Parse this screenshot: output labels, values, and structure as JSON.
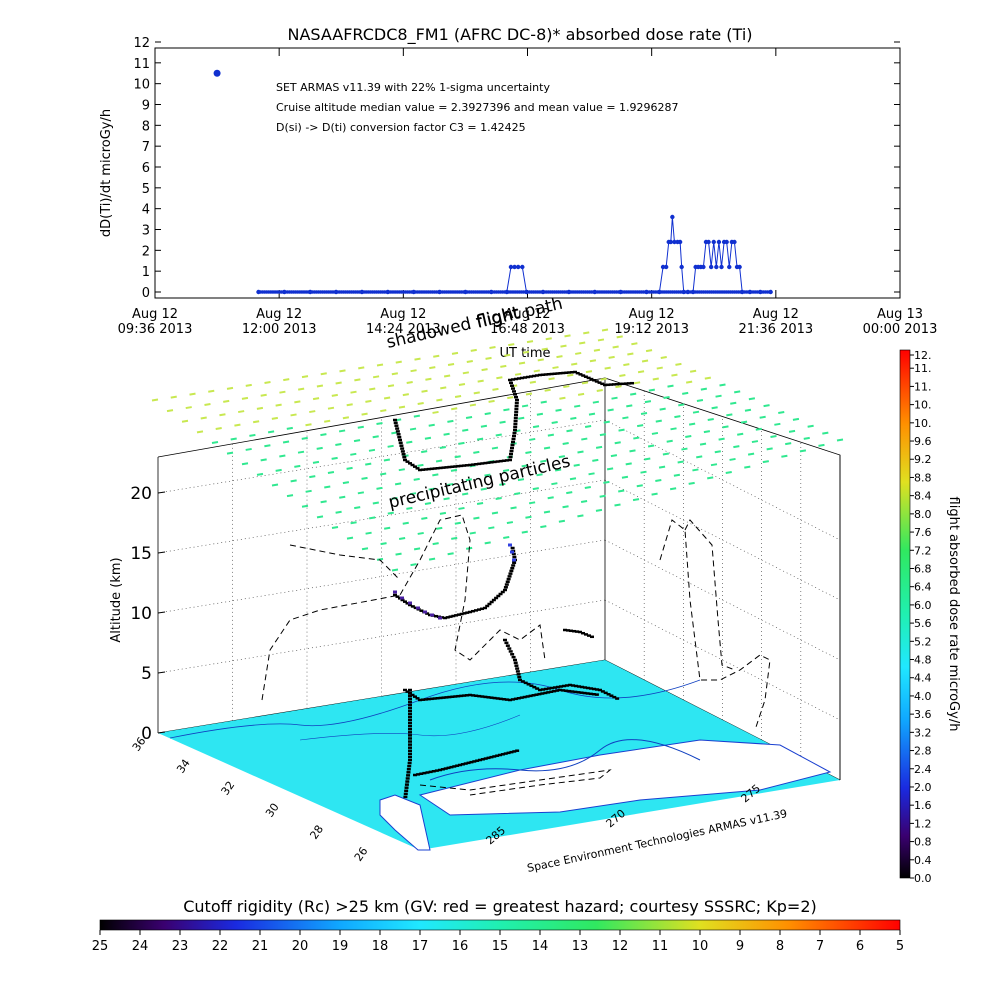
{
  "chart_data": [
    {
      "type": "line",
      "title": "NASAAFRCDC8_FM1 (AFRC DC-8)* absorbed dose rate (Ti)",
      "xlabel": "UT time",
      "ylabel": "dD(Ti)/dt microGy/h",
      "ylim": [
        0,
        12
      ],
      "yticks": [
        "0",
        "1",
        "2",
        "3",
        "4",
        "5",
        "6",
        "7",
        "8",
        "9",
        "10",
        "11",
        "12"
      ],
      "xlim": [
        0,
        14.4
      ],
      "x_unit": "hours after Aug 12 09:36 2013",
      "xticks": [
        {
          "line1": "Aug 12",
          "line2": "09:36 2013"
        },
        {
          "line1": "Aug 12",
          "line2": "12:00 2013"
        },
        {
          "line1": "Aug 12",
          "line2": "14:24 2013"
        },
        {
          "line1": "Aug 12",
          "line2": "16:48 2013"
        },
        {
          "line1": "Aug 12",
          "line2": "19:12 2013"
        },
        {
          "line1": "Aug 12",
          "line2": "21:36 2013"
        },
        {
          "line1": "Aug 13",
          "line2": "00:00 2013"
        }
      ],
      "annotations": [
        "SET ARMAS v11.39 with 22% 1-sigma uncertainty",
        "Cruise altitude median value = 2.3927396 and mean value = 1.9296287",
        "D(si) -> D(ti) conversion factor C3 = 1.42425"
      ],
      "legend_marker": {
        "x": 1.2,
        "y": 10.5
      },
      "series": [
        {
          "color": "#1030d0",
          "points": [
            [
              2.0,
              0
            ],
            [
              2.5,
              0
            ],
            [
              3.0,
              0
            ],
            [
              3.5,
              0
            ],
            [
              4.0,
              0
            ],
            [
              4.5,
              0
            ],
            [
              5.0,
              0
            ],
            [
              5.5,
              0
            ],
            [
              6.0,
              0
            ],
            [
              6.5,
              0
            ],
            [
              6.8,
              0
            ],
            [
              6.88,
              1.2
            ],
            [
              6.95,
              1.2
            ],
            [
              7.02,
              1.2
            ],
            [
              7.1,
              1.2
            ],
            [
              7.18,
              0
            ],
            [
              7.5,
              0
            ],
            [
              8.0,
              0
            ],
            [
              8.5,
              0
            ],
            [
              9.0,
              0
            ],
            [
              9.5,
              0
            ],
            [
              9.75,
              0
            ],
            [
              9.82,
              1.2
            ],
            [
              9.88,
              1.2
            ],
            [
              9.93,
              2.4
            ],
            [
              9.97,
              2.4
            ],
            [
              10.0,
              3.6
            ],
            [
              10.04,
              2.4
            ],
            [
              10.1,
              2.4
            ],
            [
              10.15,
              2.4
            ],
            [
              10.18,
              1.2
            ],
            [
              10.22,
              0
            ],
            [
              10.3,
              0
            ],
            [
              10.4,
              0
            ],
            [
              10.45,
              1.2
            ],
            [
              10.5,
              1.2
            ],
            [
              10.55,
              1.2
            ],
            [
              10.6,
              1.2
            ],
            [
              10.65,
              2.4
            ],
            [
              10.7,
              2.4
            ],
            [
              10.75,
              1.2
            ],
            [
              10.8,
              2.4
            ],
            [
              10.85,
              1.2
            ],
            [
              10.9,
              2.4
            ],
            [
              10.95,
              1.2
            ],
            [
              11.0,
              2.4
            ],
            [
              11.05,
              2.4
            ],
            [
              11.1,
              1.2
            ],
            [
              11.15,
              2.4
            ],
            [
              11.2,
              2.4
            ],
            [
              11.25,
              1.2
            ],
            [
              11.3,
              1.2
            ],
            [
              11.35,
              0
            ],
            [
              11.5,
              0
            ],
            [
              11.7,
              0
            ],
            [
              11.9,
              0
            ]
          ]
        }
      ]
    },
    {
      "type": "scatter",
      "title": "",
      "zlabel": "Altitude (km)",
      "zticks": [
        "0",
        "5",
        "10",
        "15",
        "20"
      ],
      "zlim": [
        0,
        23
      ],
      "lat_ticks": [
        "36",
        "34",
        "32",
        "30",
        "28",
        "26"
      ],
      "lon_ticks": [
        "285",
        "270",
        "275"
      ],
      "credit": "Space Environment Technologies ARMAS v11.39",
      "annotations": [
        {
          "text": "flight path"
        },
        {
          "text": "shadowed flight"
        },
        {
          "text": "precipitating particles"
        }
      ],
      "series": [
        {
          "name": "flight path",
          "color": "#000000"
        },
        {
          "name": "shadowed flight",
          "color": "#000000"
        },
        {
          "name": "precipitating particles",
          "color": "#20e080"
        }
      ]
    }
  ],
  "colorbar_right": {
    "label": "flight absorbed dose rate microGy/h",
    "range": [
      0.0,
      12.0
    ],
    "ticks": [
      "0.0",
      "0.4",
      "0.8",
      "1.2",
      "1.6",
      "2.0",
      "2.4",
      "2.8",
      "3.2",
      "3.6",
      "4.0",
      "4.4",
      "4.8",
      "5.2",
      "5.6",
      "6.0",
      "6.4",
      "6.8",
      "7.2",
      "7.6",
      "8.0",
      "8.4",
      "8.8",
      "9.2",
      "9.6",
      "10.",
      "10.",
      "11.",
      "11.",
      "12."
    ]
  },
  "colorbar_bottom": {
    "label": "Cutoff rigidity (Rc) >25 km (GV: red = greatest hazard; courtesy SSSRC; Kp=2)",
    "range": [
      25,
      5
    ],
    "ticks": [
      "25",
      "24",
      "23",
      "22",
      "21",
      "20",
      "19",
      "18",
      "17",
      "16",
      "15",
      "14",
      "13",
      "12",
      "11",
      "10",
      "9",
      "8",
      "7",
      "6",
      "5"
    ]
  },
  "colors": {
    "series": "#1030d0",
    "map_fill": "#2ee6f2",
    "precip": "#30e890",
    "precip_far": "#c8e850"
  }
}
